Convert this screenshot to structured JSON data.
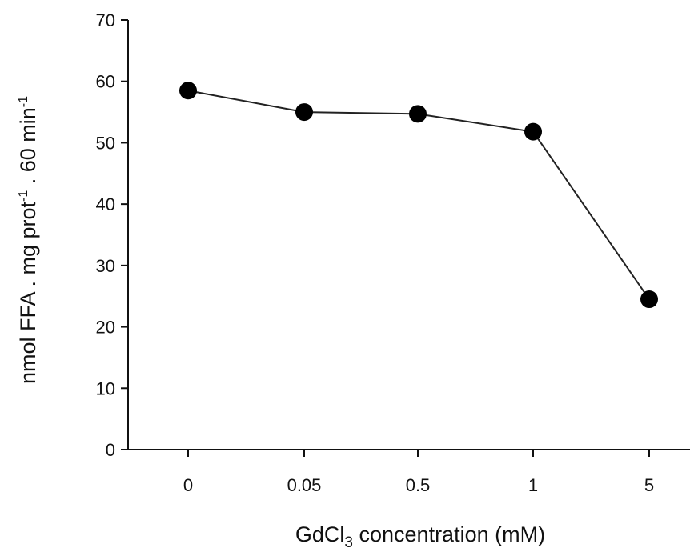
{
  "chart_data": {
    "type": "line",
    "categories": [
      "0",
      "0.05",
      "0.5",
      "1",
      "5"
    ],
    "series": [
      {
        "values": [
          58.5,
          55.0,
          54.7,
          51.8,
          24.5
        ]
      }
    ],
    "xlabel": {
      "prefix": "GdCl",
      "subscript": "3",
      "suffix": " concentration (mM)"
    },
    "ylabel": {
      "part1": "nmol FFA . mg prot",
      "sup1": "-1",
      "part2": " . 60 min",
      "sup2": "-1"
    },
    "yticks": [
      0,
      10,
      20,
      30,
      40,
      50,
      60,
      70
    ],
    "ylim": [
      0,
      70
    ],
    "grid": false,
    "colors": {
      "line": "#222222",
      "marker": "#000000",
      "axis": "#111111"
    }
  }
}
